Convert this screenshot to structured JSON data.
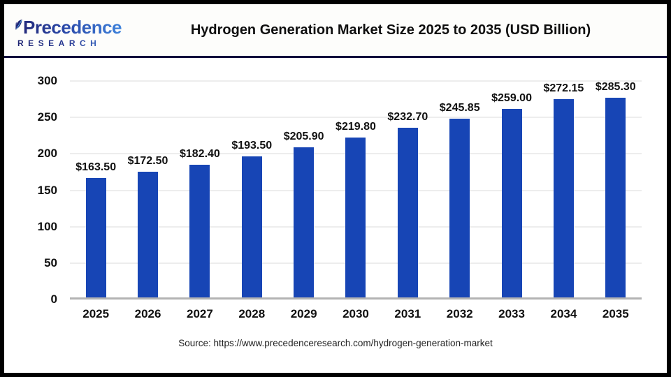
{
  "header": {
    "logo_line1": "Precedence",
    "logo_line2": "RESEARCH",
    "title": "Hydrogen Generation Market Size 2025 to 2035 (USD Billion)"
  },
  "chart_data": {
    "type": "bar",
    "title": "Hydrogen Generation Market Size 2025 to 2035 (USD Billion)",
    "categories": [
      "2025",
      "2026",
      "2027",
      "2028",
      "2029",
      "2030",
      "2031",
      "2032",
      "2033",
      "2034",
      "2035"
    ],
    "values": [
      163.5,
      172.5,
      182.4,
      193.5,
      205.9,
      219.8,
      232.7,
      245.85,
      259.0,
      272.15,
      285.3
    ],
    "value_labels": [
      "$163.50",
      "$172.50",
      "$182.40",
      "$193.50",
      "$205.90",
      "$219.80",
      "$232.70",
      "$245.85",
      "$259.00",
      "$272.15",
      "$285.30"
    ],
    "xlabel": "",
    "ylabel": "",
    "ylim": [
      0,
      300
    ],
    "yticks": [
      0,
      50,
      100,
      150,
      200,
      250,
      300
    ],
    "grid": true,
    "legend": false,
    "bar_color": "#1745b5"
  },
  "colors": {
    "bar": "#1745b5",
    "axis_line": "#b3b3b3",
    "gridline": "#ededed",
    "divider": "#110d3c",
    "logo_navy": "#232a7c",
    "logo_blue": "#3f83dc",
    "leaf_accent": "#56a7e8"
  },
  "footer": {
    "source": "Source: https://www.precedenceresearch.com/hydrogen-generation-market"
  }
}
